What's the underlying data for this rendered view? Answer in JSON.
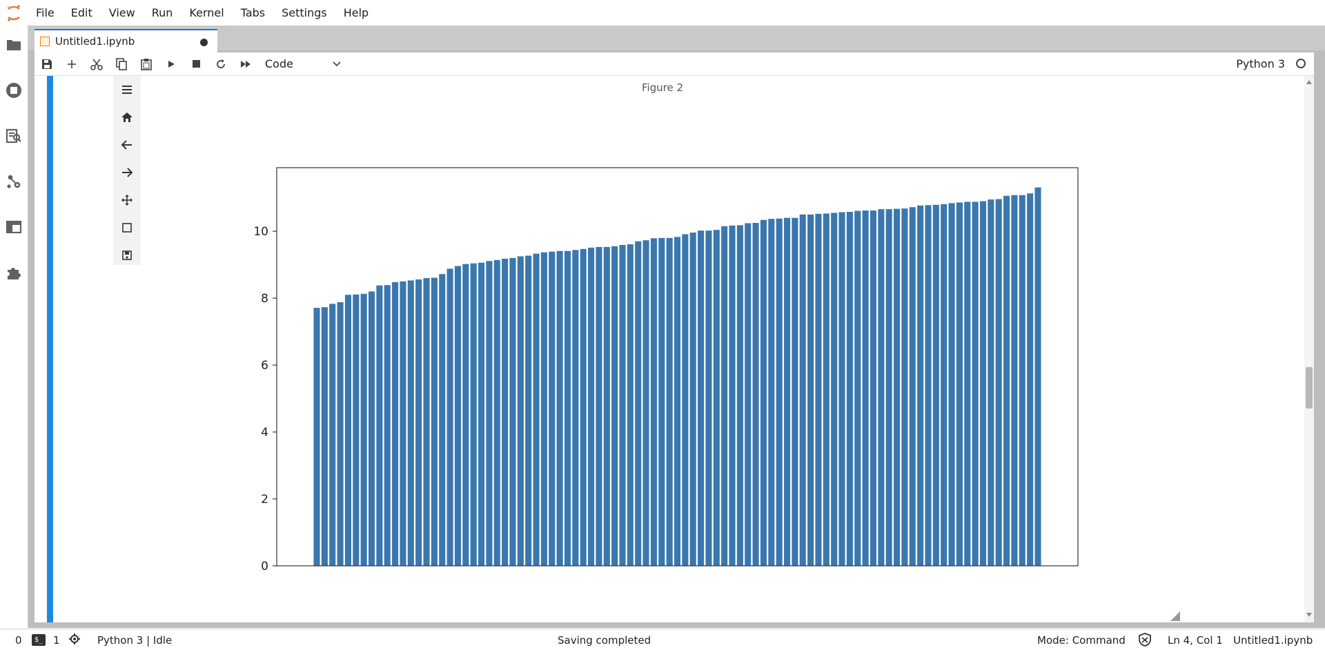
{
  "menubar": {
    "items": [
      "File",
      "Edit",
      "View",
      "Run",
      "Kernel",
      "Tabs",
      "Settings",
      "Help"
    ]
  },
  "left_sidebar": {
    "icons": [
      "folder-icon",
      "running-kernels-icon",
      "property-inspector-icon",
      "git-icon",
      "tabs-icon",
      "extensions-icon"
    ]
  },
  "tab": {
    "title": "Untitled1.ipynb"
  },
  "toolbar": {
    "icons": [
      "save-icon",
      "add-cell-icon",
      "cut-icon",
      "copy-icon",
      "paste-icon",
      "run-icon",
      "stop-icon",
      "restart-icon",
      "fast-forward-icon"
    ],
    "cell_type": "Code",
    "kernel": "Python 3"
  },
  "figure": {
    "title": "Figure 2",
    "toolbar_icons": [
      "menu-icon",
      "home-icon",
      "back-icon",
      "forward-icon",
      "pan-icon",
      "zoom-rect-icon",
      "save-figure-icon"
    ]
  },
  "chart_data": {
    "type": "bar",
    "title": "",
    "xlabel": "",
    "ylabel": "",
    "ylim": [
      0,
      11.9
    ],
    "yticks": [
      0,
      2,
      4,
      6,
      8,
      10
    ],
    "bar_color": "#3a77ae",
    "grid": false,
    "values": [
      7.71,
      7.73,
      7.83,
      7.88,
      8.1,
      8.11,
      8.13,
      8.2,
      8.38,
      8.39,
      8.48,
      8.5,
      8.53,
      8.56,
      8.6,
      8.61,
      8.72,
      8.88,
      8.96,
      9.02,
      9.04,
      9.06,
      9.11,
      9.14,
      9.18,
      9.2,
      9.25,
      9.27,
      9.33,
      9.37,
      9.39,
      9.41,
      9.41,
      9.44,
      9.47,
      9.51,
      9.53,
      9.53,
      9.55,
      9.59,
      9.61,
      9.7,
      9.73,
      9.79,
      9.8,
      9.8,
      9.83,
      9.91,
      9.96,
      10.02,
      10.02,
      10.04,
      10.15,
      10.17,
      10.18,
      10.24,
      10.25,
      10.34,
      10.37,
      10.38,
      10.4,
      10.4,
      10.5,
      10.5,
      10.52,
      10.53,
      10.55,
      10.57,
      10.58,
      10.61,
      10.62,
      10.62,
      10.66,
      10.66,
      10.67,
      10.68,
      10.72,
      10.77,
      10.78,
      10.79,
      10.81,
      10.84,
      10.86,
      10.88,
      10.88,
      10.9,
      10.95,
      10.96,
      11.06,
      11.08,
      11.08,
      11.13,
      11.31
    ]
  },
  "statusbar": {
    "terminals": "0",
    "kernels": "1",
    "kernel_status": "Python 3 | Idle",
    "message": "Saving completed",
    "mode": "Mode: Command",
    "position": "Ln 4, Col 1",
    "file": "Untitled1.ipynb"
  }
}
